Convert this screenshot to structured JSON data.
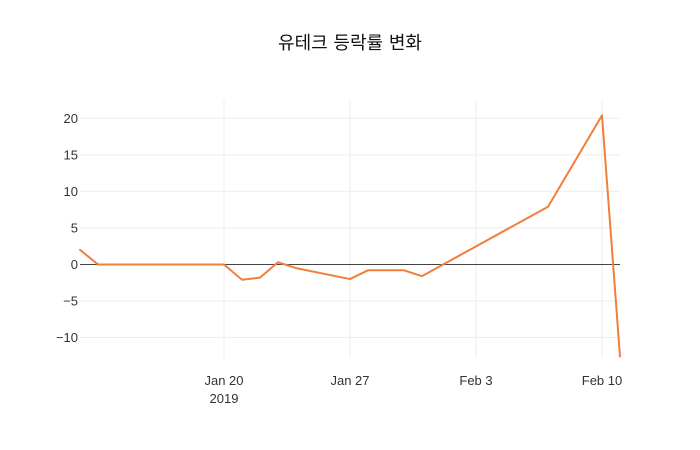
{
  "chart_data": {
    "type": "line",
    "title": "유테크 등락률 변화",
    "xlabel": "",
    "ylabel": "",
    "x_axis_type": "date",
    "xlim": [
      "2019-01-12",
      "2019-02-11"
    ],
    "ylim": [
      -12.8,
      22.5
    ],
    "grid": true,
    "legend": "none",
    "zero_line": true,
    "line_color": "#f07f3c",
    "x_ticks": [
      {
        "date": "2019-01-20",
        "label": "Jan 20",
        "sublabel": "2019"
      },
      {
        "date": "2019-01-27",
        "label": "Jan 27",
        "sublabel": ""
      },
      {
        "date": "2019-02-03",
        "label": "Feb 3",
        "sublabel": ""
      },
      {
        "date": "2019-02-10",
        "label": "Feb 10",
        "sublabel": ""
      }
    ],
    "y_ticks": [
      {
        "value": 20,
        "label": "20"
      },
      {
        "value": 15,
        "label": "15"
      },
      {
        "value": 10,
        "label": "10"
      },
      {
        "value": 5,
        "label": "5"
      },
      {
        "value": 0,
        "label": "0"
      },
      {
        "value": -5,
        "label": "−5"
      },
      {
        "value": -10,
        "label": "−10"
      }
    ],
    "series": [
      {
        "x": [
          "2019-01-12",
          "2019-01-13",
          "2019-01-20",
          "2019-01-21",
          "2019-01-22",
          "2019-01-23",
          "2019-01-24",
          "2019-01-27",
          "2019-01-28",
          "2019-01-30",
          "2019-01-31",
          "2019-02-07",
          "2019-02-10",
          "2019-02-11"
        ],
        "values": [
          2.0,
          0.0,
          0.0,
          -2.1,
          -1.8,
          0.3,
          -0.5,
          -2.0,
          -0.8,
          -0.8,
          -1.6,
          7.9,
          20.4,
          -12.6
        ]
      }
    ]
  }
}
